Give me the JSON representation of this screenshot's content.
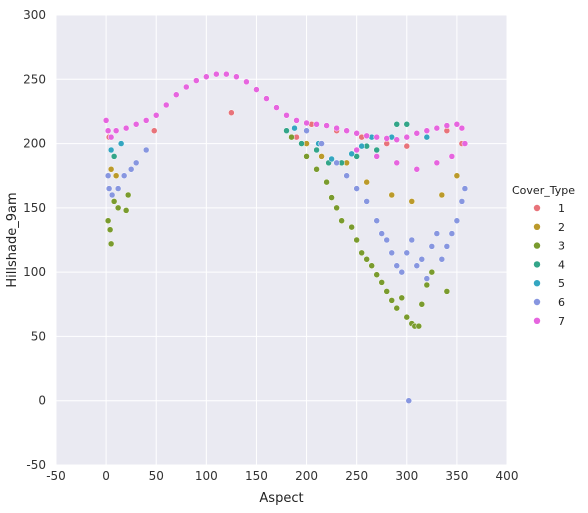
{
  "chart_data": {
    "type": "scatter",
    "title": "",
    "xlabel": "Aspect",
    "ylabel": "Hillshade_9am",
    "xlim": [
      -50,
      400
    ],
    "ylim": [
      -50,
      300
    ],
    "xticks": [
      -50,
      0,
      50,
      100,
      150,
      200,
      250,
      300,
      350,
      400
    ],
    "yticks": [
      -50,
      0,
      50,
      100,
      150,
      200,
      250,
      300
    ],
    "grid": true,
    "legend": {
      "title": "Cover_Type",
      "placement": "right",
      "entries": [
        {
          "label": "1",
          "color": "#e8737a"
        },
        {
          "label": "2",
          "color": "#bb9a2b"
        },
        {
          "label": "3",
          "color": "#7a9b2e"
        },
        {
          "label": "4",
          "color": "#33a589"
        },
        {
          "label": "5",
          "color": "#34a6c1"
        },
        {
          "label": "6",
          "color": "#8796e0"
        },
        {
          "label": "7",
          "color": "#e665df"
        }
      ]
    },
    "series": [
      {
        "name": "1",
        "color": "#e8737a",
        "points": [
          [
            3,
            205
          ],
          [
            48,
            210
          ],
          [
            125,
            224
          ],
          [
            190,
            205
          ],
          [
            205,
            215
          ],
          [
            230,
            210
          ],
          [
            255,
            205
          ],
          [
            280,
            200
          ],
          [
            300,
            198
          ],
          [
            320,
            205
          ],
          [
            340,
            210
          ],
          [
            355,
            200
          ]
        ]
      },
      {
        "name": "2",
        "color": "#bb9a2b",
        "points": [
          [
            5,
            180
          ],
          [
            10,
            175
          ],
          [
            200,
            200
          ],
          [
            215,
            190
          ],
          [
            240,
            185
          ],
          [
            260,
            170
          ],
          [
            285,
            160
          ],
          [
            305,
            155
          ],
          [
            335,
            160
          ],
          [
            350,
            175
          ]
        ]
      },
      {
        "name": "3",
        "color": "#7a9b2e",
        "points": [
          [
            2,
            140
          ],
          [
            4,
            133
          ],
          [
            5,
            122
          ],
          [
            8,
            155
          ],
          [
            12,
            150
          ],
          [
            20,
            148
          ],
          [
            22,
            160
          ],
          [
            185,
            205
          ],
          [
            200,
            190
          ],
          [
            210,
            180
          ],
          [
            220,
            170
          ],
          [
            225,
            158
          ],
          [
            230,
            150
          ],
          [
            235,
            140
          ],
          [
            245,
            135
          ],
          [
            250,
            125
          ],
          [
            255,
            115
          ],
          [
            260,
            110
          ],
          [
            265,
            105
          ],
          [
            270,
            98
          ],
          [
            275,
            92
          ],
          [
            280,
            85
          ],
          [
            285,
            78
          ],
          [
            290,
            72
          ],
          [
            295,
            80
          ],
          [
            300,
            65
          ],
          [
            305,
            60
          ],
          [
            308,
            58
          ],
          [
            312,
            58
          ],
          [
            315,
            75
          ],
          [
            320,
            90
          ],
          [
            325,
            100
          ],
          [
            340,
            85
          ]
        ]
      },
      {
        "name": "4",
        "color": "#33a589",
        "points": [
          [
            8,
            190
          ],
          [
            180,
            210
          ],
          [
            195,
            200
          ],
          [
            210,
            195
          ],
          [
            222,
            185
          ],
          [
            235,
            185
          ],
          [
            250,
            190
          ],
          [
            260,
            198
          ],
          [
            270,
            195
          ],
          [
            290,
            215
          ],
          [
            300,
            215
          ]
        ]
      },
      {
        "name": "5",
        "color": "#34a6c1",
        "points": [
          [
            5,
            195
          ],
          [
            15,
            200
          ],
          [
            188,
            212
          ],
          [
            212,
            200
          ],
          [
            225,
            188
          ],
          [
            245,
            192
          ],
          [
            255,
            198
          ],
          [
            265,
            205
          ],
          [
            285,
            205
          ],
          [
            320,
            205
          ]
        ]
      },
      {
        "name": "6",
        "color": "#8796e0",
        "points": [
          [
            2,
            175
          ],
          [
            3,
            165
          ],
          [
            6,
            160
          ],
          [
            12,
            165
          ],
          [
            18,
            175
          ],
          [
            25,
            180
          ],
          [
            30,
            185
          ],
          [
            40,
            195
          ],
          [
            200,
            210
          ],
          [
            215,
            200
          ],
          [
            230,
            185
          ],
          [
            240,
            175
          ],
          [
            250,
            165
          ],
          [
            260,
            155
          ],
          [
            270,
            140
          ],
          [
            275,
            130
          ],
          [
            280,
            125
          ],
          [
            285,
            115
          ],
          [
            290,
            105
          ],
          [
            295,
            100
          ],
          [
            300,
            115
          ],
          [
            305,
            125
          ],
          [
            310,
            105
          ],
          [
            315,
            110
          ],
          [
            320,
            95
          ],
          [
            325,
            120
          ],
          [
            330,
            130
          ],
          [
            335,
            110
          ],
          [
            340,
            120
          ],
          [
            345,
            130
          ],
          [
            350,
            140
          ],
          [
            355,
            155
          ],
          [
            358,
            165
          ],
          [
            302,
            0
          ]
        ]
      },
      {
        "name": "7",
        "color": "#e665df",
        "points": [
          [
            0,
            218
          ],
          [
            2,
            210
          ],
          [
            5,
            205
          ],
          [
            10,
            210
          ],
          [
            20,
            212
          ],
          [
            30,
            215
          ],
          [
            40,
            218
          ],
          [
            50,
            222
          ],
          [
            60,
            230
          ],
          [
            70,
            238
          ],
          [
            80,
            244
          ],
          [
            90,
            249
          ],
          [
            100,
            252
          ],
          [
            110,
            254
          ],
          [
            120,
            254
          ],
          [
            130,
            252
          ],
          [
            140,
            248
          ],
          [
            150,
            242
          ],
          [
            160,
            235
          ],
          [
            170,
            228
          ],
          [
            180,
            222
          ],
          [
            190,
            218
          ],
          [
            200,
            216
          ],
          [
            210,
            215
          ],
          [
            220,
            214
          ],
          [
            230,
            212
          ],
          [
            240,
            210
          ],
          [
            250,
            208
          ],
          [
            260,
            206
          ],
          [
            270,
            205
          ],
          [
            280,
            204
          ],
          [
            290,
            203
          ],
          [
            300,
            205
          ],
          [
            310,
            208
          ],
          [
            320,
            210
          ],
          [
            330,
            212
          ],
          [
            340,
            214
          ],
          [
            350,
            215
          ],
          [
            355,
            212
          ],
          [
            358,
            200
          ],
          [
            345,
            190
          ],
          [
            330,
            185
          ],
          [
            310,
            180
          ],
          [
            290,
            185
          ],
          [
            270,
            190
          ],
          [
            250,
            195
          ]
        ]
      }
    ]
  }
}
